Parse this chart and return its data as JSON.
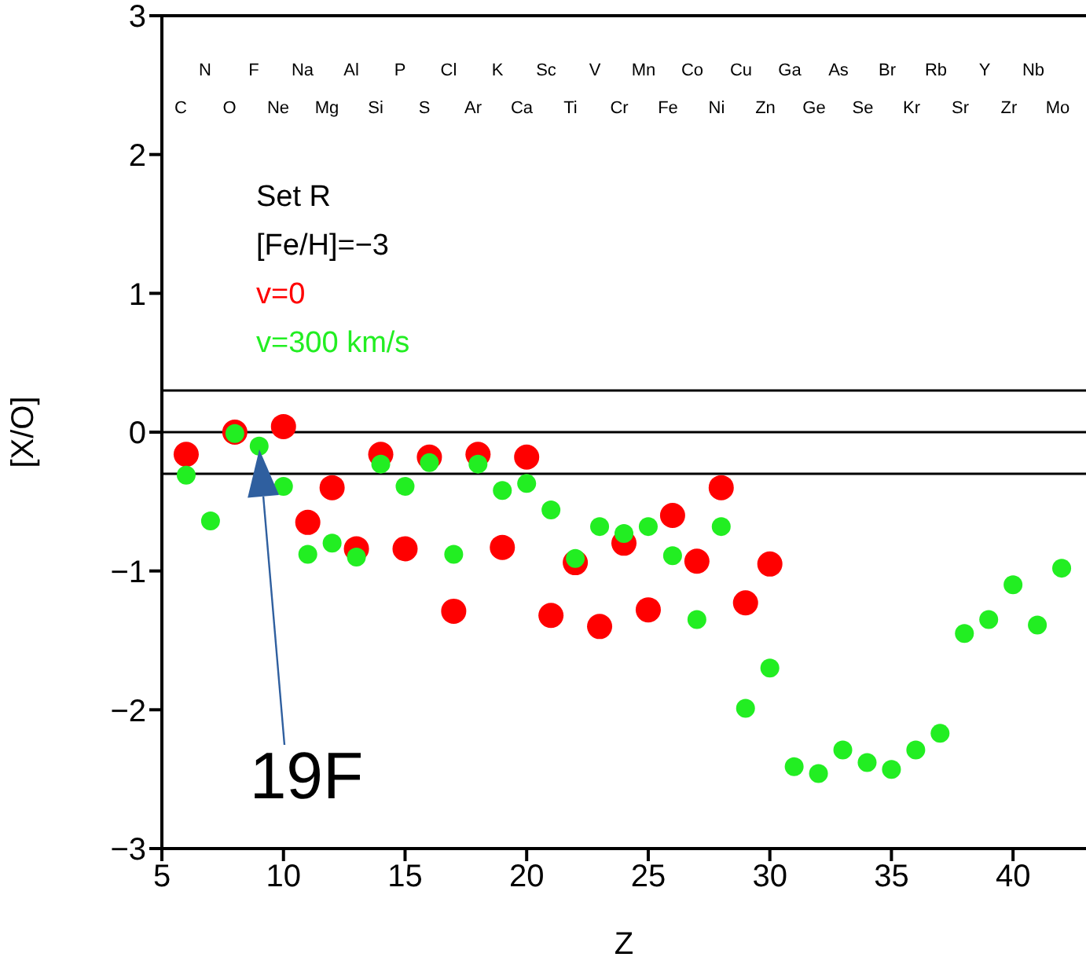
{
  "chart_data": {
    "type": "scatter",
    "xlabel": "Z",
    "ylabel": "[X/O]",
    "legend_title": "Set R",
    "legend": "top left",
    "marker": "circle",
    "xlim": [
      5,
      43
    ],
    "xticks": [
      5,
      10,
      15,
      20,
      25,
      30,
      35,
      40
    ],
    "ylim": [
      -3,
      3
    ],
    "yticks": [
      -3,
      -2,
      -1,
      0,
      1,
      2,
      3
    ],
    "grid": false,
    "series": [
      {
        "name": "v=0",
        "color": "#ff0000",
        "x": [
          6,
          8,
          10,
          11,
          12,
          13,
          14,
          15,
          16,
          17,
          18,
          19,
          20,
          21,
          22,
          23,
          24,
          25,
          26,
          27,
          28,
          29,
          30
        ],
        "values": [
          -0.16,
          0.0,
          0.04,
          -0.65,
          -0.4,
          -0.84,
          -0.16,
          -0.84,
          -0.18,
          -1.29,
          -0.16,
          -0.83,
          -0.18,
          -1.32,
          -0.94,
          -1.4,
          -0.8,
          -1.28,
          -0.6,
          -0.93,
          -0.4,
          -1.23,
          -0.95
        ]
      },
      {
        "name": "v=300 km/s",
        "color": "#22ee22",
        "x": [
          6,
          7,
          8,
          9,
          10,
          11,
          12,
          13,
          14,
          15,
          16,
          17,
          18,
          19,
          20,
          21,
          22,
          23,
          24,
          25,
          26,
          27,
          28,
          29,
          30,
          31,
          32,
          33,
          34,
          35,
          36,
          37,
          38,
          39,
          40,
          41,
          42
        ],
        "values": [
          -0.31,
          -0.64,
          -0.01,
          -0.1,
          -0.39,
          -0.88,
          -0.8,
          -0.9,
          -0.23,
          -0.39,
          -0.22,
          -0.88,
          -0.23,
          -0.42,
          -0.37,
          -0.56,
          -0.91,
          -0.68,
          -0.73,
          -0.68,
          -0.89,
          -1.35,
          -0.68,
          -1.99,
          -1.7,
          -2.41,
          -2.46,
          -2.29,
          -2.38,
          -2.43,
          -2.29,
          -2.17,
          -1.45,
          -1.35,
          -1.1,
          -1.39,
          -0.98
        ]
      }
    ],
    "ref_lines": [
      {
        "axis": "y",
        "value": 0.3,
        "color": "#000000"
      },
      {
        "axis": "y",
        "value": 0,
        "color": "#000000"
      },
      {
        "axis": "y",
        "value": -0.3,
        "color": "#000000"
      }
    ],
    "annotations": [
      "[Fe/H]=−3",
      "19F",
      "C",
      "N",
      "O",
      "F",
      "Ne",
      "Na",
      "Mg",
      "Al",
      "Si",
      "P",
      "S",
      "Cl",
      "Ar",
      "K",
      "Ca",
      "Sc",
      "Ti",
      "V",
      "Cr",
      "Mn",
      "Fe",
      "Co",
      "Ni",
      "Cu",
      "Zn",
      "Ga",
      "Ge",
      "As",
      "Se",
      "Br",
      "Kr",
      "Rb",
      "Sr",
      "Y",
      "Zr",
      "Nb",
      "Mo"
    ]
  }
}
